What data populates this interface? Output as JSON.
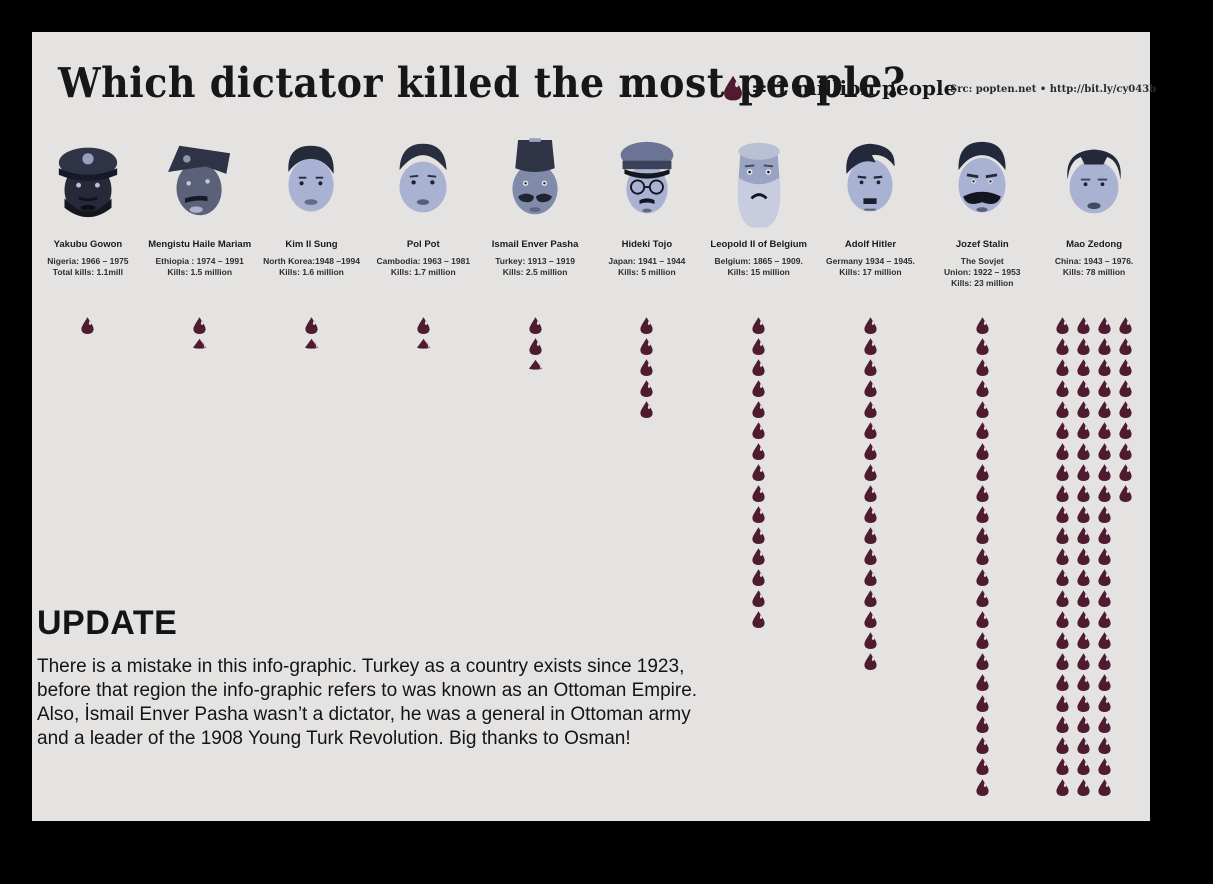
{
  "title": "Which dictator killed the most people?",
  "legend": {
    "drop_icon": "blood-drop-icon",
    "label": "= 1 million people"
  },
  "source": "Src: popten.net • http://bit.ly/cy043b",
  "update": {
    "heading": "UPDATE",
    "body": "There is a mistake in this info-graphic. Turkey as a country exists since 1923, before that region the info-graphic refers to was known as an Ottoman Empire. Also, İsmail Enver Pasha wasn’t a dictator, he was a general in Ottoman army and a leader of the 1908 Young Turk Revolution. Big thanks to Osman!"
  },
  "colors": {
    "canvas": "#000000",
    "panel": "#e4e3e1",
    "drop": "#4e1b30",
    "text": "#1b1b1d"
  },
  "dictators": [
    {
      "name": "Yakubu Gowon",
      "stats": [
        "Nigeria: 1966 – 1975",
        "Total kills: 1.1mill"
      ],
      "kills_million": 1.1,
      "drops": {
        "full": 1,
        "half": 0
      }
    },
    {
      "name": "Mengistu Haile Mariam",
      "stats": [
        "Ethiopia : 1974 – 1991",
        "Kills: 1.5 million"
      ],
      "kills_million": 1.5,
      "drops": {
        "full": 1,
        "half": 1
      }
    },
    {
      "name": "Kim Il Sung",
      "stats": [
        "North Korea:1948 –1994",
        "Kills: 1.6 million"
      ],
      "kills_million": 1.6,
      "drops": {
        "full": 1,
        "half": 1
      }
    },
    {
      "name": "Pol Pot",
      "stats": [
        "Cambodia: 1963 – 1981",
        "Kills: 1.7 million"
      ],
      "kills_million": 1.7,
      "drops": {
        "full": 1,
        "half": 1
      }
    },
    {
      "name": "Ismail Enver Pasha",
      "stats": [
        "Turkey: 1913 – 1919",
        "Kills: 2.5 million"
      ],
      "kills_million": 2.5,
      "drops": {
        "full": 2,
        "half": 1
      }
    },
    {
      "name": "Hideki Tojo",
      "stats": [
        "Japan: 1941 – 1944",
        "Kills: 5 million"
      ],
      "kills_million": 5,
      "drops": {
        "full": 5,
        "half": 0
      }
    },
    {
      "name": "Leopold II of Belgium",
      "stats": [
        "Belgium: 1865 – 1909.",
        "Kills: 15 million"
      ],
      "kills_million": 15,
      "drops": {
        "full": 15,
        "half": 0
      }
    },
    {
      "name": "Adolf Hitler",
      "stats": [
        "Germany 1934 – 1945.",
        "Kills: 17 million"
      ],
      "kills_million": 17,
      "drops": {
        "full": 17,
        "half": 0
      }
    },
    {
      "name": "Jozef Stalin",
      "stats": [
        "The Sovjet",
        "Union: 1922 – 1953",
        "Kills: 23 million"
      ],
      "kills_million": 23,
      "drops": {
        "full": 23,
        "half": 0
      }
    },
    {
      "name": "Mao Zedong",
      "stats": [
        "China: 1943 – 1976.",
        "Kills: 78 million"
      ],
      "kills_million": 78,
      "drops": {
        "full": 78,
        "half": 0,
        "columns": [
          23,
          23,
          23,
          9
        ]
      }
    }
  ],
  "chart_data": {
    "type": "pictogram",
    "title": "Which dictator killed the most people?",
    "unit_label": "1 blood drop = 1 million people",
    "categories": [
      "Yakubu Gowon",
      "Mengistu Haile Mariam",
      "Kim Il Sung",
      "Pol Pot",
      "Ismail Enver Pasha",
      "Hideki Tojo",
      "Leopold II of Belgium",
      "Adolf Hitler",
      "Jozef Stalin",
      "Mao Zedong"
    ],
    "values": [
      1.1,
      1.5,
      1.6,
      1.7,
      2.5,
      5,
      15,
      17,
      23,
      78
    ],
    "value_unit": "million people killed",
    "drop_color": "#4e1b30",
    "legend_position": "top-right"
  }
}
